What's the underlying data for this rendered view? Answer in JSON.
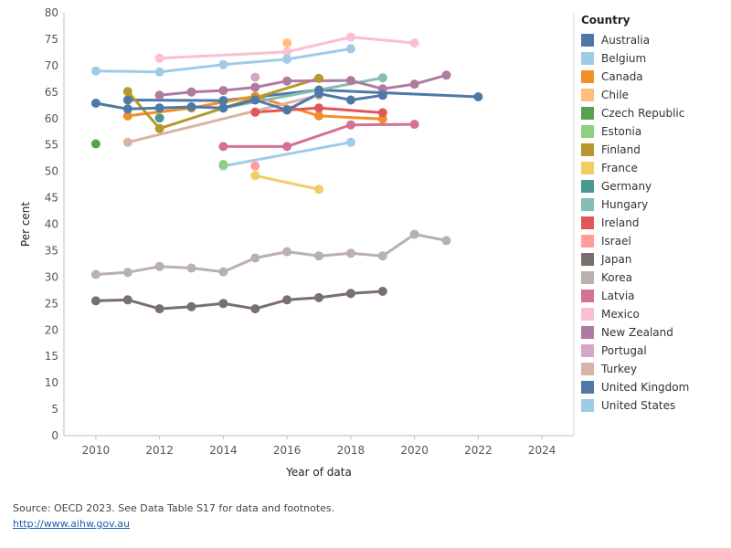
{
  "legend": {
    "title": "Country"
  },
  "footer": {
    "source": "Source: OECD 2023. See Data Table S17 for data and footnotes.",
    "link": "http://www.aihw.gov.au"
  },
  "chart_data": {
    "type": "line",
    "title": "",
    "xlabel": "Year of data",
    "ylabel": "Per cent",
    "xlim": [
      2009,
      2025
    ],
    "ylim": [
      0,
      80
    ],
    "xticks": [
      2010,
      2012,
      2014,
      2016,
      2018,
      2020,
      2022,
      2024
    ],
    "yticks": [
      0,
      5,
      10,
      15,
      20,
      25,
      30,
      35,
      40,
      45,
      50,
      55,
      60,
      65,
      70,
      75,
      80
    ],
    "grid": false,
    "legend_position": "right",
    "series": [
      {
        "name": "Australia",
        "color": "#4E79A7",
        "points": [
          [
            2011,
            63.5
          ],
          [
            2014,
            63.4
          ],
          [
            2017,
            65.4
          ],
          [
            2022,
            64.1
          ]
        ]
      },
      {
        "name": "Belgium",
        "color": "#A0CBE8",
        "points": [
          [
            2014,
            51.0
          ],
          [
            2018,
            55.5
          ]
        ]
      },
      {
        "name": "Canada",
        "color": "#F28E2B",
        "points": [
          [
            2011,
            60.5
          ],
          [
            2013,
            62.0
          ],
          [
            2015,
            64.2
          ],
          [
            2017,
            60.5
          ],
          [
            2019,
            59.9
          ]
        ]
      },
      {
        "name": "Chile",
        "color": "#FFBE7D",
        "points": [
          [
            2016,
            74.3
          ]
        ]
      },
      {
        "name": "Czech Republic",
        "color": "#59A14F",
        "points": [
          [
            2010,
            55.2
          ]
        ]
      },
      {
        "name": "Estonia",
        "color": "#8CD17D",
        "points": [
          [
            2014,
            51.3
          ]
        ]
      },
      {
        "name": "Finland",
        "color": "#B6992D",
        "points": [
          [
            2011,
            65.1
          ],
          [
            2012,
            58.1
          ],
          [
            2015,
            63.9
          ],
          [
            2017,
            67.6
          ]
        ]
      },
      {
        "name": "France",
        "color": "#F1CE63",
        "points": [
          [
            2015,
            49.2
          ],
          [
            2017,
            46.6
          ]
        ]
      },
      {
        "name": "Germany",
        "color": "#499894",
        "points": [
          [
            2012,
            60.1
          ]
        ]
      },
      {
        "name": "Hungary",
        "color": "#86BCB6",
        "points": [
          [
            2014,
            62.0
          ],
          [
            2019,
            67.7
          ]
        ]
      },
      {
        "name": "Ireland",
        "color": "#E15759",
        "points": [
          [
            2015,
            61.2
          ],
          [
            2017,
            62.0
          ],
          [
            2019,
            61.1
          ]
        ]
      },
      {
        "name": "Israel",
        "color": "#FF9D9A",
        "points": [
          [
            2015,
            51.0
          ]
        ]
      },
      {
        "name": "Japan",
        "color": "#79706E",
        "points": [
          [
            2010,
            25.5
          ],
          [
            2011,
            25.7
          ],
          [
            2012,
            24.0
          ],
          [
            2013,
            24.4
          ],
          [
            2014,
            25.0
          ],
          [
            2015,
            24.0
          ],
          [
            2016,
            25.7
          ],
          [
            2017,
            26.1
          ],
          [
            2018,
            26.9
          ],
          [
            2019,
            27.3
          ]
        ]
      },
      {
        "name": "Korea",
        "color": "#BAB0AC",
        "points": [
          [
            2010,
            30.5
          ],
          [
            2011,
            30.9
          ],
          [
            2012,
            32.0
          ],
          [
            2013,
            31.7
          ],
          [
            2014,
            31.0
          ],
          [
            2015,
            33.6
          ],
          [
            2016,
            34.8
          ],
          [
            2017,
            34.0
          ],
          [
            2018,
            34.5
          ],
          [
            2019,
            34.0
          ],
          [
            2020,
            38.1
          ],
          [
            2021,
            36.9
          ]
        ]
      },
      {
        "name": "Latvia",
        "color": "#D37295",
        "points": [
          [
            2014,
            54.7
          ],
          [
            2016,
            54.7
          ],
          [
            2018,
            58.8
          ],
          [
            2020,
            58.9
          ]
        ]
      },
      {
        "name": "Mexico",
        "color": "#FABFD2",
        "points": [
          [
            2012,
            71.4
          ],
          [
            2016,
            72.6
          ],
          [
            2018,
            75.4
          ],
          [
            2020,
            74.3
          ]
        ]
      },
      {
        "name": "New Zealand",
        "color": "#B07AA1",
        "points": [
          [
            2012,
            64.4
          ],
          [
            2013,
            65.0
          ],
          [
            2014,
            65.3
          ],
          [
            2015,
            65.9
          ],
          [
            2016,
            67.1
          ],
          [
            2018,
            67.2
          ],
          [
            2019,
            65.6
          ],
          [
            2020,
            66.5
          ],
          [
            2021,
            68.2
          ]
        ]
      },
      {
        "name": "Portugal",
        "color": "#D4A6C8",
        "points": [
          [
            2015,
            67.8
          ]
        ]
      },
      {
        "name": "Turkey",
        "color": "#D7B5A6",
        "points": [
          [
            2011,
            55.5
          ],
          [
            2017,
            64.4
          ]
        ]
      },
      {
        "name": "United Kingdom",
        "color": "#4E79A7",
        "points": [
          [
            2010,
            62.9
          ],
          [
            2011,
            61.8
          ],
          [
            2012,
            62.0
          ],
          [
            2013,
            62.2
          ],
          [
            2014,
            62.0
          ],
          [
            2015,
            63.5
          ],
          [
            2016,
            61.6
          ],
          [
            2017,
            64.7
          ],
          [
            2018,
            63.5
          ],
          [
            2019,
            64.4
          ]
        ]
      },
      {
        "name": "United States",
        "color": "#A0CBE8",
        "points": [
          [
            2010,
            69.0
          ],
          [
            2012,
            68.8
          ],
          [
            2014,
            70.2
          ],
          [
            2016,
            71.2
          ],
          [
            2018,
            73.2
          ]
        ]
      }
    ]
  }
}
